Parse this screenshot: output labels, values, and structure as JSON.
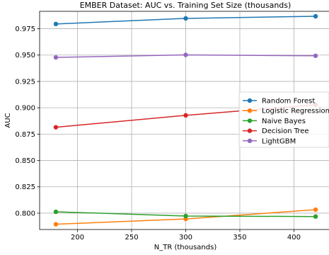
{
  "chart_data": {
    "type": "line",
    "title": "EMBER Dataset: AUC vs. Training Set Size (thousands)",
    "xlabel": "N_TR (thousands)",
    "ylabel": "AUC",
    "x": [
      180,
      300,
      420
    ],
    "xlim": [
      165,
      435
    ],
    "ylim": [
      0.7845,
      0.9915
    ],
    "xticks": [
      200,
      250,
      300,
      350,
      400
    ],
    "yticks": [
      0.8,
      0.825,
      0.85,
      0.875,
      0.9,
      0.925,
      0.95,
      0.975
    ],
    "xtick_labels": [
      "200",
      "250",
      "300",
      "350",
      "400"
    ],
    "ytick_labels": [
      "0.800",
      "0.825",
      "0.850",
      "0.875",
      "0.900",
      "0.925",
      "0.950",
      "0.975"
    ],
    "grid": true,
    "legend_position": "center-right",
    "series": [
      {
        "name": "Random Forest",
        "color": "#1f77b4",
        "values": [
          0.9795,
          0.9848,
          0.9868
        ]
      },
      {
        "name": "Logistic Regression",
        "color": "#ff7f0e",
        "values": [
          0.7895,
          0.7945,
          0.8033
        ]
      },
      {
        "name": "Naive Bayes",
        "color": "#2ca02c",
        "values": [
          0.8013,
          0.7973,
          0.7968
        ]
      },
      {
        "name": "Decision Tree",
        "color": "#d62728",
        "values": [
          0.8815,
          0.8928,
          0.9028
        ]
      },
      {
        "name": "LightGBM",
        "color": "#9467bd",
        "values": [
          0.9478,
          0.9502,
          0.9493
        ]
      }
    ]
  }
}
